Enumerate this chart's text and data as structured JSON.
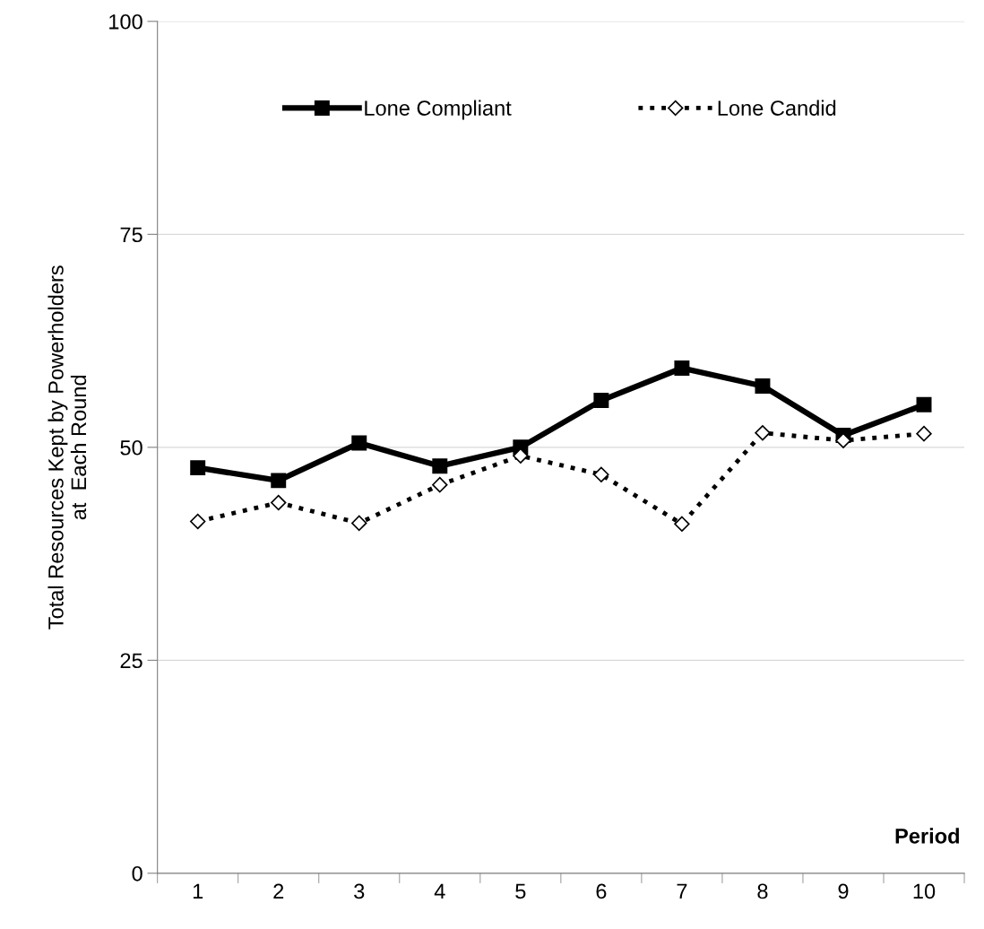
{
  "chart_data": {
    "type": "line",
    "ylabel": "Total Resources Kept by Powerholders\nat  Each Round",
    "xlabel": "Period",
    "categories": [
      "1",
      "2",
      "3",
      "4",
      "5",
      "6",
      "7",
      "8",
      "9",
      "10"
    ],
    "series": [
      {
        "name": "Lone Compliant",
        "color": "#000000",
        "marker": "square",
        "line_style": "solid",
        "values": [
          47.6,
          46.1,
          50.5,
          47.8,
          50.0,
          55.5,
          59.3,
          57.2,
          51.4,
          55.0
        ]
      },
      {
        "name": "Lone Candid",
        "color": "#000000",
        "marker": "diamond",
        "line_style": "dotted",
        "values": [
          41.3,
          43.5,
          41.1,
          45.6,
          49.0,
          46.8,
          41.0,
          51.7,
          50.8,
          51.6
        ]
      }
    ],
    "ylim": [
      0,
      100
    ],
    "yticks": [
      0,
      25,
      50,
      75,
      100
    ],
    "grid": "y",
    "legend": "top"
  }
}
